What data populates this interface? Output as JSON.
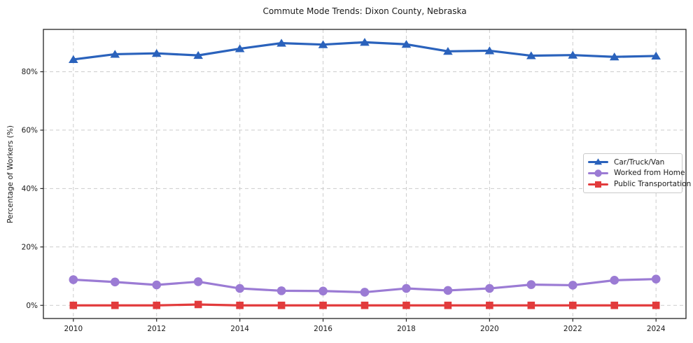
{
  "chart_data": {
    "type": "line",
    "title": "Commute Mode Trends: Dixon County, Nebraska",
    "xlabel": "",
    "ylabel": "Percentage of Workers (%)",
    "x": [
      2010,
      2011,
      2012,
      2013,
      2014,
      2015,
      2016,
      2017,
      2018,
      2019,
      2020,
      2021,
      2022,
      2023,
      2024
    ],
    "xticks": [
      2010,
      2012,
      2014,
      2016,
      2018,
      2020,
      2022,
      2024
    ],
    "xtick_labels": [
      "2010",
      "2012",
      "2014",
      "2016",
      "2018",
      "2020",
      "2022",
      "2024"
    ],
    "yticks": [
      0,
      20,
      40,
      60,
      80
    ],
    "ytick_labels": [
      "0%",
      "20%",
      "40%",
      "60%",
      "80%"
    ],
    "xlim": [
      2009.28,
      2024.72
    ],
    "ylim": [
      -4.5,
      94.5
    ],
    "grid": true,
    "grid_style": "dashed",
    "legend_position": "center-right",
    "series": [
      {
        "name": "Car/Truck/Van",
        "marker": "triangle",
        "color": "#2a62bc",
        "values": [
          84.2,
          86.0,
          86.3,
          85.6,
          87.9,
          89.8,
          89.3,
          90.1,
          89.4,
          87.0,
          87.2,
          85.5,
          85.7,
          85.1,
          85.4
        ]
      },
      {
        "name": "Worked from Home",
        "marker": "circle",
        "color": "#9b7bd4",
        "values": [
          8.8,
          8.0,
          7.0,
          8.1,
          5.8,
          5.0,
          4.9,
          4.5,
          5.8,
          5.1,
          5.8,
          7.1,
          6.9,
          8.6,
          9.0
        ]
      },
      {
        "name": "Public Transportation",
        "marker": "square",
        "color": "#e23b3c",
        "values": [
          0.0,
          0.0,
          0.0,
          0.3,
          0.0,
          0.0,
          0.0,
          0.0,
          0.0,
          0.0,
          0.0,
          0.0,
          0.0,
          0.0,
          0.0
        ]
      }
    ]
  },
  "colors": {
    "grid": "#cccccc",
    "frame": "#242424",
    "text": "#1a1a1a",
    "background": "#ffffff"
  }
}
